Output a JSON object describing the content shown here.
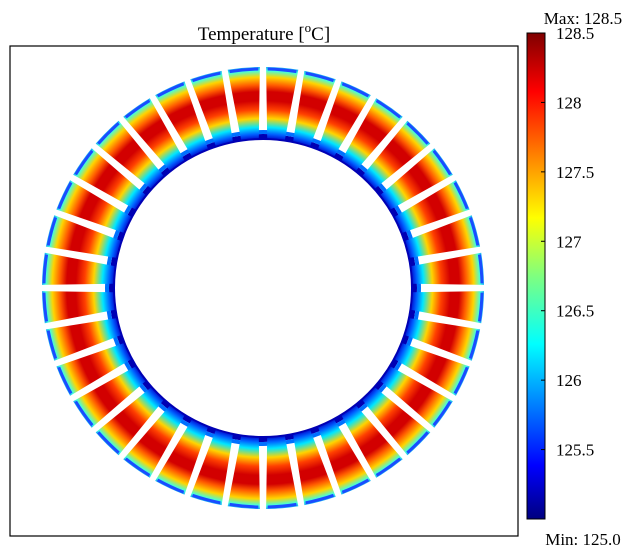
{
  "plot": {
    "title_main": "Temperature [",
    "title_sup": "o",
    "title_tail": "C]"
  },
  "colorbar": {
    "max_label": "Max: 128.5",
    "min_label": "Min: 125.0",
    "range": [
      125.0,
      128.5
    ],
    "ticks": [
      {
        "value": 128.5,
        "label": "128.5"
      },
      {
        "value": 128,
        "label": "128"
      },
      {
        "value": 127.5,
        "label": "127.5"
      },
      {
        "value": 127,
        "label": "127"
      },
      {
        "value": 126.5,
        "label": "126.5"
      },
      {
        "value": 126,
        "label": "126"
      },
      {
        "value": 125.5,
        "label": "125.5"
      }
    ],
    "colormap": [
      "#00007f",
      "#0000ff",
      "#007fff",
      "#00ffff",
      "#7fff7f",
      "#ffff00",
      "#ff7f00",
      "#ff0000",
      "#7f0000"
    ]
  },
  "geometry_model": {
    "slot_count": 36,
    "colors": {
      "hot": "#c80000",
      "warm": "#ff6a00",
      "mid": "#ffd400",
      "cool": "#00e6ff",
      "cold": "#0060ff",
      "coldest": "#0000a0",
      "frame": "#000000"
    }
  }
}
